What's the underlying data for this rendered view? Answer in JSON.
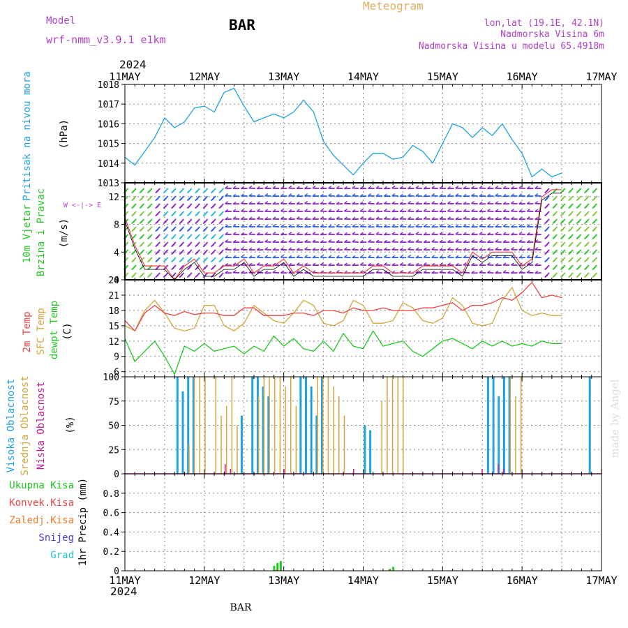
{
  "header": {
    "model_label": "Model",
    "model_value": "wrf-nmm_v3.9.1 e1km",
    "station": "BAR",
    "title": "Meteogram",
    "coords": "lon,lat (19.1E, 42.1N)",
    "elevation": "Nadmorska Visina 6m",
    "model_elevation": "Nadmorska Visina u modelu 65.4918m"
  },
  "footer": {
    "station": "BAR",
    "watermark": "made by Angel"
  },
  "colors": {
    "pressure": "#1fa2e3",
    "wind_label": "#1fc71f",
    "wind_arrows": [
      "#8a22c8",
      "#2a5ce6",
      "#20b8d8",
      "#28c828",
      "#7ac93a"
    ],
    "temp_2m": "#e84545",
    "temp_sfc": "#d4a439",
    "dewpoint": "#1fc71f",
    "cloud_high": "#1fa2e3",
    "cloud_mid": "#d4a439",
    "cloud_low": "#c21a8e",
    "precip_total": "#1fc71f",
    "precip_conv": "#e84545",
    "precip_frz": "#f07a28",
    "precip_snow": "#4a3ce0",
    "precip_hail": "#20c8c8",
    "frame": "#000000",
    "grid": "#888888",
    "header_purple": "#b040c8",
    "header_orange": "#e0b060"
  },
  "chart_data": [
    {
      "type": "line",
      "panel": "pressure",
      "ylabel": "Pritisak na nivou mora",
      "units": "(hPa)",
      "x_start": "2024-05-11 00:00",
      "x_step_hours": 3,
      "x_ticks": [
        "11MAY",
        "12MAY",
        "13MAY",
        "14MAY",
        "15MAY",
        "16MAY",
        "17MAY"
      ],
      "year": "2024",
      "ylim": [
        1013,
        1018
      ],
      "yticks": [
        1013,
        1014,
        1015,
        1016,
        1017,
        1018
      ],
      "grid": true,
      "series": [
        {
          "values": [
            1014.3,
            1013.9,
            1014.6,
            1015.3,
            1016.3,
            1015.8,
            1016.1,
            1016.8,
            1016.9,
            1016.6,
            1017.6,
            1017.8,
            1016.9,
            1016.1,
            1016.3,
            1016.5,
            1016.3,
            1016.6,
            1017.2,
            1016.6,
            1015.1,
            1014.4,
            1013.9,
            1013.4,
            1014.0,
            1014.5,
            1014.5,
            1014.2,
            1014.3,
            1014.9,
            1014.6,
            1014.0,
            1015.0,
            1016.0,
            1015.8,
            1015.3,
            1015.8,
            1015.4,
            1016.0,
            1015.2,
            1014.5,
            1013.3,
            1013.7,
            1013.3,
            1013.5
          ]
        }
      ]
    },
    {
      "type": "line",
      "panel": "wind",
      "ylabel": "10m Vjetar",
      "ylabel2": "Brzina i Pravac",
      "units": "(m/s)",
      "direction_key": "W <-|-> E",
      "ylim": [
        0,
        14
      ],
      "yticks": [
        0,
        4,
        8,
        12
      ],
      "grid": true,
      "series": [
        {
          "values": [
            9,
            5,
            2,
            2,
            2,
            0,
            2,
            3,
            1,
            1,
            2,
            2,
            3,
            1,
            2,
            2,
            3,
            1,
            2,
            1,
            1,
            1,
            1,
            1,
            1,
            2,
            2,
            1,
            1,
            1,
            2,
            2,
            2,
            2,
            1,
            4,
            3,
            4,
            4,
            4,
            2,
            3,
            12,
            13,
            13
          ]
        }
      ]
    },
    {
      "type": "line",
      "panel": "temperature",
      "ylabel": "2m Temp",
      "ylabel2": "SFC Temp",
      "ylabel3": "dewpt Temp",
      "units": "(C)",
      "ylim": [
        5,
        24
      ],
      "yticks": [
        6,
        9,
        12,
        15,
        18,
        21,
        24
      ],
      "grid": true,
      "series": [
        {
          "name": "2m Temp",
          "values": [
            16.0,
            14.0,
            17.5,
            19.0,
            17.5,
            17.0,
            17.8,
            17.2,
            17.5,
            17.5,
            17.0,
            17.0,
            18.5,
            18.5,
            17.0,
            17.0,
            17.0,
            17.5,
            17.5,
            17.0,
            18.0,
            18.0,
            17.5,
            18.5,
            18.0,
            18.0,
            18.5,
            18.0,
            18.0,
            18.0,
            18.5,
            18.5,
            19.0,
            19.5,
            18.0,
            19.0,
            19.0,
            19.5,
            20.5,
            20.0,
            21.5,
            23.5,
            20.5,
            21.0,
            20.5
          ]
        },
        {
          "name": "SFC Temp",
          "values": [
            15.0,
            14.0,
            18.0,
            20.0,
            17.5,
            14.5,
            14.0,
            14.5,
            19.0,
            19.0,
            15.0,
            14.0,
            15.5,
            19.0,
            17.5,
            16.0,
            15.5,
            17.5,
            20.0,
            19.0,
            15.5,
            15.0,
            16.0,
            20.0,
            19.0,
            15.5,
            15.5,
            16.0,
            19.5,
            18.5,
            16.0,
            15.5,
            16.5,
            20.5,
            19.0,
            15.5,
            15.0,
            15.5,
            20.0,
            22.5,
            18.0,
            17.0,
            17.5,
            17.0,
            17.0
          ]
        },
        {
          "name": "dewpt Temp",
          "values": [
            12.5,
            8.0,
            10.0,
            12.0,
            9.0,
            5.5,
            11.0,
            10.0,
            11.5,
            10.0,
            10.5,
            11.0,
            9.5,
            11.0,
            10.0,
            13.0,
            11.0,
            12.5,
            10.5,
            10.0,
            12.0,
            10.0,
            13.5,
            11.0,
            10.5,
            14.0,
            11.0,
            11.5,
            12.0,
            10.0,
            9.0,
            10.5,
            12.0,
            12.5,
            11.5,
            10.5,
            12.0,
            11.0,
            12.0,
            11.0,
            11.5,
            11.0,
            12.0,
            11.5,
            11.5
          ]
        }
      ]
    },
    {
      "type": "bar",
      "panel": "clouds",
      "ylabel": "Visoka Oblacnost",
      "ylabel2": "Srednja Oblacnost",
      "ylabel3": "Niska Oblacnost",
      "units": "(%)",
      "ylim": [
        0,
        100
      ],
      "yticks": [
        0,
        25,
        50,
        75,
        100
      ],
      "grid": true,
      "series": [
        {
          "name": "Visoka Oblacnost",
          "values": [
            0,
            0,
            0,
            0,
            0,
            0,
            0,
            0,
            0,
            100,
            85,
            100,
            100,
            0,
            0,
            0,
            0,
            0,
            0,
            0,
            0,
            60,
            0,
            100,
            100,
            90,
            80,
            0,
            0,
            0,
            0,
            0,
            100,
            100,
            90,
            60,
            100,
            0,
            0,
            0,
            0,
            0,
            0,
            0,
            50,
            45,
            0,
            0,
            0,
            0,
            0,
            0,
            0,
            0,
            0,
            0,
            0,
            0,
            0,
            0,
            0,
            0,
            0,
            0,
            0,
            0,
            0,
            100,
            100,
            80,
            100,
            100,
            0,
            0,
            0,
            0,
            0,
            0,
            0,
            0,
            0,
            0,
            0,
            0,
            0,
            0,
            100,
            0,
            0
          ]
        },
        {
          "name": "Srednja Oblacnost",
          "values": [
            0,
            0,
            0,
            0,
            0,
            0,
            0,
            0,
            0,
            0,
            0,
            30,
            100,
            100,
            100,
            0,
            100,
            60,
            70,
            100,
            50,
            0,
            0,
            0,
            80,
            100,
            100,
            100,
            100,
            90,
            100,
            70,
            0,
            0,
            0,
            100,
            100,
            100,
            90,
            80,
            60,
            0,
            0,
            0,
            0,
            0,
            0,
            75,
            100,
            100,
            100,
            100,
            0,
            0,
            0,
            0,
            0,
            0,
            0,
            0,
            0,
            0,
            0,
            0,
            0,
            0,
            0,
            0,
            0,
            0,
            0,
            100,
            80,
            100,
            0,
            0,
            0,
            0,
            0,
            0,
            0,
            0,
            0,
            0,
            0,
            0,
            0,
            0,
            5
          ]
        },
        {
          "name": "Niska Oblacnost",
          "values": [
            0,
            0,
            0,
            0,
            0,
            0,
            0,
            0,
            0,
            0,
            0,
            0,
            0,
            0,
            0,
            0,
            0,
            0,
            10,
            5,
            0,
            0,
            0,
            0,
            0,
            0,
            0,
            0,
            0,
            5,
            0,
            0,
            0,
            0,
            0,
            0,
            0,
            0,
            0,
            0,
            0,
            0,
            5,
            0,
            0,
            0,
            0,
            0,
            0,
            0,
            0,
            0,
            0,
            0,
            0,
            0,
            0,
            0,
            0,
            0,
            0,
            0,
            0,
            0,
            0,
            0,
            5,
            0,
            0,
            10,
            5,
            0,
            0,
            0,
            0,
            0,
            0,
            0,
            0,
            0,
            0,
            0,
            0,
            0,
            0,
            0,
            0,
            0,
            0
          ]
        }
      ]
    },
    {
      "type": "bar",
      "panel": "precipitation",
      "ylabel": "1hr Precip (mm)",
      "legend": [
        "Ukupna Kisa",
        "Konvek.Kisa",
        "Zaledj.Kisa",
        "Snijeg",
        "Grad"
      ],
      "ylim": [
        0,
        1.0
      ],
      "yticks": [
        0,
        0.2,
        0.4,
        0.6,
        0.8
      ],
      "ytick_labels": [
        "0",
        "0.2",
        "0.4",
        "0.6",
        "0.8"
      ],
      "grid": true,
      "series": [
        {
          "name": "Ukupna Kisa",
          "x_hours": [
            45,
            46,
            47,
            80,
            81
          ],
          "values": [
            0.05,
            0.08,
            0.1,
            0.02,
            0.04
          ]
        },
        {
          "name": "Konvek.Kisa",
          "x_hours": [
            46,
            80
          ],
          "values": [
            0.01,
            0.01
          ]
        }
      ]
    }
  ]
}
